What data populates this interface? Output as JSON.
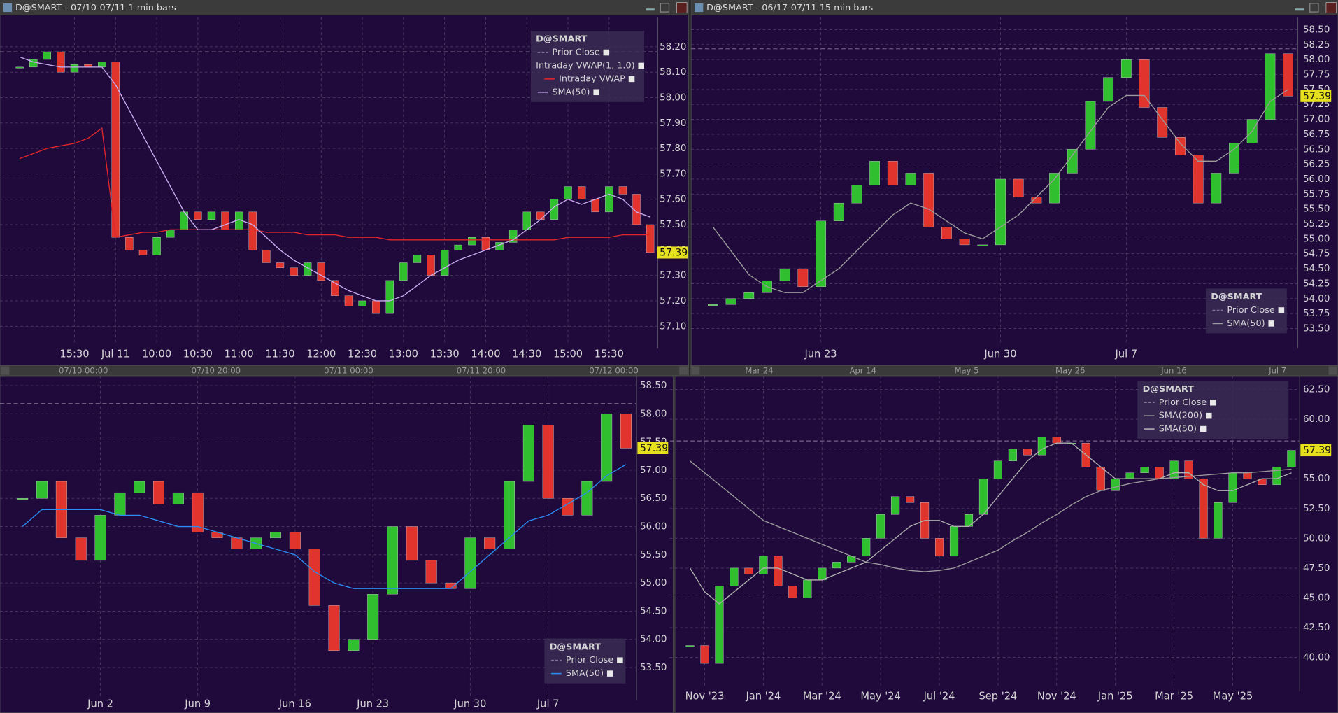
{
  "chart_data": [
    {
      "type": "candlestick",
      "title": "D@SMART - 07/10-07/11 1 min bars",
      "categories": [
        null,
        null,
        null,
        null,
        "15:30",
        null,
        null,
        "Jul 11",
        null,
        null,
        "10:00",
        null,
        null,
        "10:30",
        null,
        null,
        "11:00",
        null,
        null,
        "11:30",
        null,
        null,
        "12:00",
        null,
        null,
        "12:30",
        null,
        null,
        "13:00",
        null,
        null,
        "13:30",
        null,
        null,
        "14:00",
        null,
        null,
        "14:30",
        null,
        null,
        "15:00",
        null,
        null,
        "15:30",
        null,
        null,
        null
      ],
      "series": [
        {
          "name": "D@SMART",
          "up_color": "#2fbf2f",
          "down_color": "#e0342c",
          "values": [
            58.12,
            58.15,
            58.18,
            58.1,
            58.13,
            58.12,
            58.14,
            57.45,
            57.4,
            57.38,
            57.45,
            57.48,
            57.55,
            57.52,
            57.55,
            57.48,
            57.55,
            57.4,
            57.35,
            57.33,
            57.3,
            57.35,
            57.28,
            57.22,
            57.18,
            57.2,
            57.15,
            57.28,
            57.35,
            57.38,
            57.3,
            57.4,
            57.42,
            57.45,
            57.4,
            57.43,
            57.48,
            57.55,
            57.52,
            57.6,
            57.65,
            57.6,
            57.55,
            57.65,
            57.62,
            57.5,
            57.39
          ]
        },
        {
          "name": "Intraday VWAP",
          "color": "#e0262a",
          "values": [
            57.76,
            57.78,
            57.8,
            57.81,
            57.82,
            57.84,
            57.88,
            57.45,
            57.46,
            57.47,
            57.47,
            57.48,
            57.48,
            57.48,
            57.48,
            57.48,
            57.48,
            57.48,
            57.47,
            57.47,
            57.47,
            57.46,
            57.46,
            57.46,
            57.45,
            57.45,
            57.45,
            57.44,
            57.44,
            57.44,
            57.44,
            57.44,
            57.44,
            57.44,
            57.44,
            57.44,
            57.44,
            57.44,
            57.44,
            57.44,
            57.45,
            57.45,
            57.45,
            57.45,
            57.46,
            57.46,
            57.46
          ]
        },
        {
          "name": "SMA(50)",
          "color": "#c9aef0",
          "values": [
            58.16,
            58.14,
            58.13,
            58.12,
            58.12,
            58.12,
            58.12,
            58.05,
            57.95,
            57.85,
            57.75,
            57.65,
            57.55,
            57.48,
            57.48,
            57.5,
            57.52,
            57.5,
            57.45,
            57.4,
            57.36,
            57.33,
            57.3,
            57.27,
            57.24,
            57.22,
            57.2,
            57.2,
            57.22,
            57.26,
            57.3,
            57.33,
            57.36,
            57.38,
            57.4,
            57.42,
            57.44,
            57.48,
            57.52,
            57.57,
            57.6,
            57.58,
            57.6,
            57.62,
            57.6,
            57.55,
            57.53
          ]
        }
      ],
      "prior_close": {
        "name": "Prior Close",
        "value": 58.18
      },
      "legend_group": "Intraday VWAP(1, 1.0)",
      "last_price": 57.39,
      "ylim": [
        57.03,
        58.3
      ],
      "yticks": [
        {
          "value": 57.1,
          "label": "57.10"
        },
        {
          "value": 57.2,
          "label": "57.20"
        },
        {
          "value": 57.3,
          "label": "57.30"
        },
        {
          "value": 57.4,
          "label": "57.40"
        },
        {
          "value": 57.5,
          "label": "57.50"
        },
        {
          "value": 57.6,
          "label": "57.60"
        },
        {
          "value": 57.7,
          "label": "57.70"
        },
        {
          "value": 57.8,
          "label": "57.80"
        },
        {
          "value": 57.9,
          "label": "57.90"
        },
        {
          "value": 58.0,
          "label": "58.00"
        },
        {
          "value": 58.1,
          "label": "58.10"
        },
        {
          "value": 58.2,
          "label": "58.20"
        }
      ],
      "grid": true
    },
    {
      "type": "candlestick",
      "title": "D@SMART - 06/17-07/11 15 min bars",
      "categories": [
        null,
        null,
        null,
        null,
        null,
        null,
        "Jun 23",
        null,
        null,
        null,
        null,
        null,
        null,
        null,
        null,
        null,
        "Jun 30",
        null,
        null,
        null,
        null,
        null,
        null,
        "Jul 7",
        null,
        null,
        null,
        null,
        null,
        null,
        null,
        null,
        null
      ],
      "series": [
        {
          "name": "D@SMART",
          "up_color": "#2fbf2f",
          "down_color": "#e0342c",
          "values": [
            53.9,
            54.0,
            54.1,
            54.3,
            54.5,
            54.2,
            55.3,
            55.6,
            55.9,
            56.3,
            55.9,
            56.1,
            55.2,
            55.0,
            54.9,
            54.9,
            56.0,
            55.7,
            55.6,
            56.1,
            56.5,
            57.3,
            57.7,
            58.0,
            57.2,
            56.7,
            56.4,
            55.6,
            56.1,
            56.6,
            57.0,
            58.1,
            57.39
          ]
        },
        {
          "name": "SMA(50)",
          "color": "#9c9c9c",
          "values": [
            55.2,
            54.8,
            54.4,
            54.2,
            54.1,
            54.1,
            54.3,
            54.5,
            54.8,
            55.1,
            55.4,
            55.6,
            55.5,
            55.3,
            55.1,
            55.0,
            55.2,
            55.4,
            55.7,
            56.0,
            56.4,
            56.8,
            57.2,
            57.4,
            57.4,
            57.0,
            56.6,
            56.3,
            56.3,
            56.5,
            56.8,
            57.3,
            57.5
          ]
        }
      ],
      "prior_close": {
        "name": "Prior Close",
        "value": 58.18
      },
      "last_price": 57.39,
      "ylim": [
        53.24,
        58.64
      ],
      "yticks": [
        {
          "value": 53.5,
          "label": "53.50"
        },
        {
          "value": 53.75,
          "label": "53.75"
        },
        {
          "value": 54.0,
          "label": "54.00"
        },
        {
          "value": 54.25,
          "label": "54.25"
        },
        {
          "value": 54.5,
          "label": "54.50"
        },
        {
          "value": 54.75,
          "label": "54.75"
        },
        {
          "value": 55.0,
          "label": "55.00"
        },
        {
          "value": 55.25,
          "label": "55.25"
        },
        {
          "value": 55.5,
          "label": "55.50"
        },
        {
          "value": 55.75,
          "label": "55.75"
        },
        {
          "value": 56.0,
          "label": "56.00"
        },
        {
          "value": 56.25,
          "label": "56.25"
        },
        {
          "value": 56.5,
          "label": "56.50"
        },
        {
          "value": 56.75,
          "label": "56.75"
        },
        {
          "value": 57.0,
          "label": "57.00"
        },
        {
          "value": 57.25,
          "label": "57.25"
        },
        {
          "value": 57.5,
          "label": "57.50"
        },
        {
          "value": 57.75,
          "label": "57.75"
        },
        {
          "value": 58.0,
          "label": "58.00"
        },
        {
          "value": 58.25,
          "label": "58.25"
        },
        {
          "value": 58.5,
          "label": "58.50"
        }
      ],
      "grid": true
    },
    {
      "type": "candlestick",
      "categories": [
        null,
        null,
        null,
        null,
        "Jun 2",
        null,
        null,
        null,
        null,
        "Jun 9",
        null,
        null,
        null,
        null,
        "Jun 16",
        null,
        null,
        null,
        "Jun 23",
        null,
        null,
        null,
        null,
        "Jun 30",
        null,
        null,
        null,
        "Jul 7",
        null,
        null,
        null,
        null
      ],
      "series": [
        {
          "name": "D@SMART",
          "up_color": "#2fbf2f",
          "down_color": "#e0342c",
          "values": [
            56.5,
            56.8,
            55.8,
            55.4,
            56.2,
            56.6,
            56.8,
            56.4,
            56.6,
            55.9,
            55.8,
            55.6,
            55.8,
            55.9,
            55.6,
            54.6,
            53.8,
            54.0,
            54.8,
            56.0,
            55.4,
            55.0,
            54.9,
            55.8,
            55.6,
            56.8,
            57.8,
            56.5,
            56.2,
            56.8,
            58.0,
            57.39
          ]
        },
        {
          "name": "SMA(50)",
          "color": "#2b8cf2",
          "values": [
            56.0,
            56.3,
            56.3,
            56.3,
            56.3,
            56.2,
            56.2,
            56.1,
            56.0,
            56.0,
            55.9,
            55.8,
            55.7,
            55.6,
            55.5,
            55.2,
            55.0,
            54.9,
            54.9,
            54.9,
            54.9,
            54.9,
            54.9,
            55.2,
            55.5,
            55.8,
            56.1,
            56.2,
            56.4,
            56.6,
            56.9,
            57.1
          ]
        }
      ],
      "prior_close": {
        "name": "Prior Close",
        "value": 58.18
      },
      "last_price": 57.39,
      "ylim": [
        53.0,
        58.6
      ],
      "yticks": [
        {
          "value": 53.5,
          "label": "53.50"
        },
        {
          "value": 54.0,
          "label": "54.00"
        },
        {
          "value": 54.5,
          "label": "54.50"
        },
        {
          "value": 55.0,
          "label": "55.00"
        },
        {
          "value": 55.5,
          "label": "55.50"
        },
        {
          "value": 56.0,
          "label": "56.00"
        },
        {
          "value": 56.5,
          "label": "56.50"
        },
        {
          "value": 57.0,
          "label": "57.00"
        },
        {
          "value": 57.5,
          "label": "57.50"
        },
        {
          "value": 58.0,
          "label": "58.00"
        },
        {
          "value": 58.5,
          "label": "58.50"
        }
      ],
      "grid": true
    },
    {
      "type": "candlestick",
      "categories": [
        null,
        "Nov '23",
        null,
        null,
        null,
        "Jan '24",
        null,
        null,
        null,
        "Mar '24",
        null,
        null,
        null,
        "May '24",
        null,
        null,
        null,
        "Jul '24",
        null,
        null,
        null,
        "Sep '24",
        null,
        null,
        null,
        "Nov '24",
        null,
        null,
        null,
        "Jan '25",
        null,
        null,
        null,
        "Mar '25",
        null,
        null,
        null,
        "May '25",
        null,
        null,
        null,
        null
      ],
      "series": [
        {
          "name": "D@SMART",
          "up_color": "#2fbf2f",
          "down_color": "#e0342c",
          "values": [
            41.0,
            39.5,
            46.0,
            47.5,
            47.0,
            48.5,
            46.0,
            45.0,
            46.5,
            47.5,
            48.0,
            48.5,
            50.0,
            52.0,
            53.5,
            53.0,
            50.0,
            48.5,
            51.0,
            52.0,
            55.0,
            56.5,
            57.5,
            57.0,
            58.5,
            58.0,
            58.0,
            56.0,
            54.0,
            55.0,
            55.5,
            56.0,
            55.0,
            56.5,
            55.0,
            50.0,
            53.0,
            55.5,
            55.0,
            54.5,
            56.0,
            57.39
          ]
        },
        {
          "name": "SMA(200)",
          "color": "#9c9c9c",
          "values": [
            56.5,
            55.5,
            54.5,
            53.5,
            52.5,
            51.5,
            51.0,
            50.5,
            50.0,
            49.5,
            49.0,
            48.5,
            48.0,
            47.8,
            47.5,
            47.3,
            47.2,
            47.3,
            47.5,
            48.0,
            48.5,
            49.0,
            49.8,
            50.5,
            51.3,
            52.0,
            52.8,
            53.5,
            54.0,
            54.3,
            54.6,
            54.8,
            55.0,
            55.1,
            55.2,
            55.3,
            55.4,
            55.5,
            55.5,
            55.6,
            55.7,
            55.8
          ]
        },
        {
          "name": "SMA(50)",
          "color": "#b0b0b0",
          "values": [
            47.5,
            45.5,
            44.5,
            45.5,
            46.5,
            47.5,
            47.5,
            47.0,
            46.5,
            46.5,
            47.0,
            47.5,
            48.0,
            49.0,
            50.0,
            51.0,
            51.5,
            51.5,
            51.0,
            51.0,
            52.0,
            53.5,
            55.0,
            56.5,
            57.5,
            58.0,
            58.0,
            57.0,
            56.0,
            55.0,
            55.0,
            55.0,
            55.0,
            55.5,
            55.5,
            54.5,
            54.0,
            54.0,
            54.5,
            55.0,
            55.0,
            55.5
          ]
        }
      ],
      "prior_close": {
        "name": "Prior Close",
        "value": 58.18
      },
      "last_price": 57.39,
      "ylim": [
        37.5,
        63.3
      ],
      "yticks": [
        {
          "value": 40,
          "label": "40.00"
        },
        {
          "value": 42.5,
          "label": "42.50"
        },
        {
          "value": 45,
          "label": "45.00"
        },
        {
          "value": 47.5,
          "label": "47.50"
        },
        {
          "value": 50,
          "label": "50.00"
        },
        {
          "value": 52.5,
          "label": "52.50"
        },
        {
          "value": 55,
          "label": "55.00"
        },
        {
          "value": 57.5,
          "label": "57.50"
        },
        {
          "value": 60,
          "label": "60.00"
        },
        {
          "value": 62.5,
          "label": "62.50"
        }
      ],
      "grid": true
    }
  ],
  "navigators": [
    {
      "labels": [
        "07/10 00:00",
        "07/10 20:00",
        "07/11 00:00",
        "07/11 20:00",
        "07/12 00:00"
      ]
    },
    {
      "labels": [
        "Mar 24",
        "Apr 14",
        "May 5",
        "May 26",
        "Jun 16",
        "Jul 7"
      ]
    }
  ]
}
